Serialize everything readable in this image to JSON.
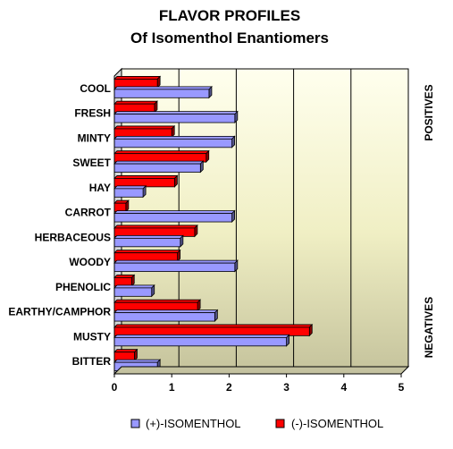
{
  "chart_data": {
    "type": "bar",
    "orientation": "horizontal",
    "title": [
      "FLAVOR PROFILES",
      "Of Isomenthol Enantiomers"
    ],
    "categories": [
      "COOL",
      "FRESH",
      "MINTY",
      "SWEET",
      "HAY",
      "CARROT",
      "HERBACEOUS",
      "WOODY",
      "PHENOLIC",
      "EARTHY/CAMPHOR",
      "MUSTY",
      "BITTER"
    ],
    "series": [
      {
        "name": "(+)-ISOMENTHOL",
        "color": "#9999ff",
        "values": [
          1.65,
          2.1,
          2.05,
          1.5,
          0.5,
          2.05,
          1.15,
          2.1,
          0.65,
          1.75,
          3.0,
          0.75
        ]
      },
      {
        "name": "(-)-ISOMENTHOL",
        "color": "#ff0000",
        "values": [
          0.75,
          0.7,
          1.0,
          1.6,
          1.05,
          0.2,
          1.4,
          1.1,
          0.3,
          1.45,
          3.4,
          0.35
        ]
      }
    ],
    "xlim": [
      0,
      5
    ],
    "xticks": [
      "0",
      "1",
      "2",
      "3",
      "4",
      "5"
    ],
    "xlabel": "",
    "ylabel": "",
    "side_labels": {
      "top": "POSITIVES",
      "bottom": "NEGATIVES"
    },
    "grid": "vertical",
    "legend": "bottom"
  }
}
